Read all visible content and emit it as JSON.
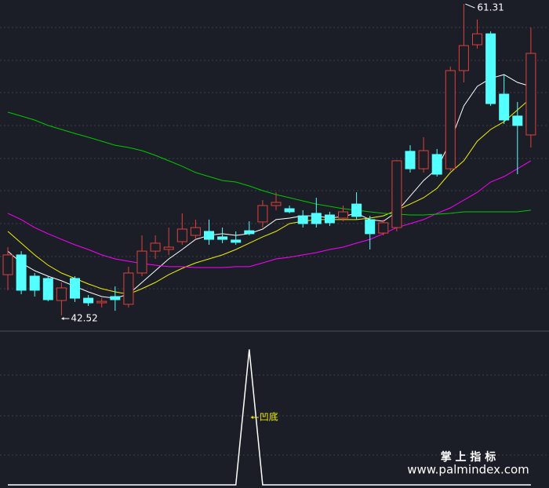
{
  "chart_data": [
    {
      "type": "candlestick",
      "open": [
        44.98,
        46.17,
        44.89,
        44.75,
        43.42,
        44.75,
        43.56,
        43.28,
        43.66,
        43.19,
        45.08,
        46.4,
        46.5,
        46.97,
        47.35,
        47.59,
        47.26,
        47.07,
        47.63,
        48.16,
        49.15,
        48.96,
        48.53,
        48.68,
        48.58,
        48.39,
        49.24,
        48.3,
        47.49,
        47.82,
        52.42,
        51.37,
        52.23,
        51.37,
        57.29,
        58.85,
        59.51,
        55.87,
        54.55,
        53.41
      ],
      "close": [
        46.17,
        44.04,
        44.04,
        43.47,
        44.18,
        43.56,
        43.28,
        43.37,
        43.47,
        45.08,
        46.4,
        46.88,
        46.64,
        47.73,
        47.82,
        47.11,
        47.11,
        46.93,
        47.45,
        49.15,
        49.34,
        48.77,
        48.06,
        48.06,
        48.11,
        48.77,
        48.49,
        47.45,
        48.11,
        51.85,
        51.37,
        52.46,
        51.04,
        57.29,
        58.8,
        59.51,
        55.3,
        54.31,
        53.98,
        58.33
      ],
      "high": [
        46.64,
        46.4,
        45.08,
        44.89,
        44.51,
        44.89,
        43.75,
        43.56,
        44.27,
        45.46,
        47.35,
        47.35,
        47.82,
        48.68,
        48.3,
        48.3,
        47.82,
        47.59,
        48.2,
        49.48,
        49.95,
        49.15,
        48.87,
        49.62,
        48.77,
        49.15,
        49.95,
        48.53,
        48.3,
        51.9,
        52.79,
        53.27,
        52.56,
        57.53,
        61.31,
        60.37,
        59.66,
        57.05,
        55.4,
        59.89
      ],
      "low": [
        44.04,
        43.8,
        43.66,
        43.37,
        42.52,
        43.33,
        43.09,
        43.0,
        42.8,
        43.0,
        44.89,
        45.93,
        46.17,
        46.78,
        47.11,
        46.78,
        46.88,
        46.78,
        47.35,
        47.82,
        48.87,
        48.68,
        47.82,
        47.82,
        47.92,
        48.2,
        48.3,
        46.5,
        47.35,
        47.59,
        51.14,
        51.14,
        50.9,
        51.23,
        56.58,
        58.62,
        55.16,
        54.07,
        51.04,
        52.65
      ],
      "up_color": "#e0403c",
      "down_color": "#54ffff",
      "series": [
        {
          "color": "#ffffff",
          "values": [
            46.4,
            45.69,
            45.22,
            44.89,
            44.61,
            44.27,
            43.94,
            43.66,
            43.56,
            43.8,
            44.51,
            45.22,
            45.93,
            46.5,
            47.11,
            47.35,
            47.45,
            47.35,
            47.45,
            47.73,
            48.3,
            48.39,
            48.53,
            48.53,
            48.39,
            48.49,
            48.68,
            48.3,
            48.2,
            48.77,
            49.72,
            50.66,
            51.37,
            53.03,
            55.16,
            56.34,
            56.82,
            57.05,
            56.58,
            56.34
          ]
        },
        {
          "color": "#f0f000",
          "values": [
            47.59,
            46.88,
            46.17,
            45.55,
            45.08,
            44.75,
            44.42,
            44.13,
            43.94,
            43.8,
            44.13,
            44.51,
            44.98,
            45.36,
            45.69,
            45.93,
            46.17,
            46.5,
            46.88,
            47.26,
            47.59,
            48.06,
            48.2,
            48.3,
            48.3,
            48.3,
            48.3,
            48.39,
            48.53,
            48.87,
            49.24,
            49.62,
            50.19,
            51.14,
            51.85,
            53.03,
            53.74,
            54.21,
            54.92,
            55.63
          ]
        },
        {
          "color": "#ff00ff",
          "values": [
            48.68,
            48.3,
            47.82,
            47.45,
            47.11,
            46.78,
            46.5,
            46.17,
            45.93,
            45.79,
            45.65,
            45.55,
            45.46,
            45.46,
            45.41,
            45.41,
            45.41,
            45.46,
            45.46,
            45.69,
            45.93,
            46.03,
            46.17,
            46.31,
            46.5,
            46.64,
            46.88,
            47.11,
            47.45,
            47.82,
            48.06,
            48.3,
            48.68,
            49.01,
            49.48,
            49.95,
            50.57,
            50.9,
            51.37,
            51.85
          ]
        },
        {
          "color": "#00c800",
          "values": [
            54.78,
            54.55,
            54.31,
            53.98,
            53.74,
            53.5,
            53.27,
            53.03,
            52.79,
            52.65,
            52.46,
            52.18,
            51.85,
            51.52,
            51.14,
            50.9,
            50.66,
            50.57,
            50.33,
            50.05,
            49.81,
            49.62,
            49.43,
            49.24,
            49.1,
            48.96,
            48.87,
            48.77,
            48.68,
            48.63,
            48.58,
            48.58,
            48.63,
            48.68,
            48.77,
            48.77,
            48.77,
            48.77,
            48.77,
            48.87
          ]
        }
      ],
      "annotations": [
        61.31,
        42.52
      ],
      "ylim": [
        41.67,
        61.55
      ]
    },
    {
      "type": "line",
      "color": "#ffffff",
      "values": [
        0,
        0,
        0,
        0,
        0,
        0,
        0,
        0,
        0,
        0,
        0,
        0,
        0,
        0,
        0,
        0,
        0,
        0,
        1,
        0,
        0,
        0,
        0,
        0,
        0,
        0,
        0,
        0,
        0,
        0,
        0,
        0,
        0,
        0,
        0,
        0,
        0,
        0,
        0,
        0
      ],
      "annotation": "凹底",
      "annotation_color": "#f0f000",
      "ylim": [
        0,
        1.1
      ]
    }
  ],
  "watermark": {
    "title": "掌 上 指 标",
    "url": "www.palmindex.com"
  }
}
